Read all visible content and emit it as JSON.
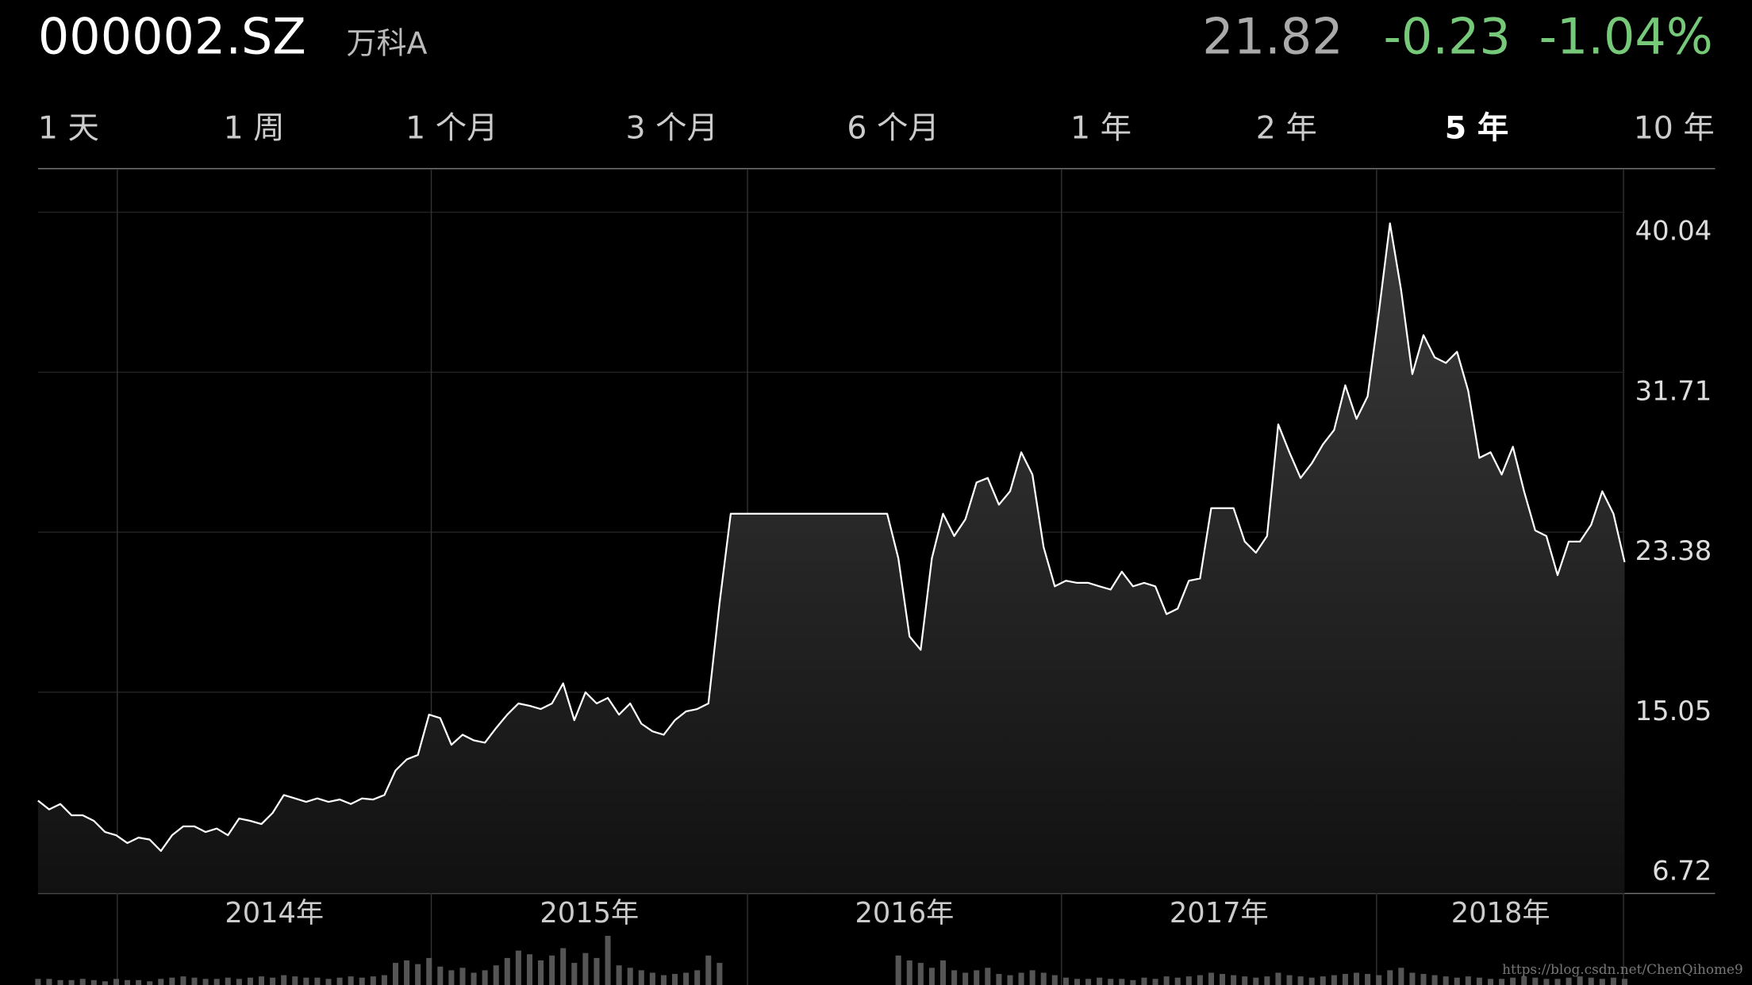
{
  "header": {
    "ticker": "000002.SZ",
    "name": "万科A",
    "price": "21.82",
    "change": "-0.23",
    "change_percent": "-1.04%"
  },
  "ranges": {
    "items": [
      "1 天",
      "1 周",
      "1 个月",
      "3 个月",
      "6 个月",
      "1 年",
      "2 年",
      "5 年",
      "10 年"
    ],
    "selected": 7
  },
  "chart_data": {
    "type": "line",
    "color": "#ffffff",
    "values": [
      9.4,
      8.94,
      9.23,
      8.64,
      8.64,
      8.35,
      7.77,
      7.6,
      7.19,
      7.48,
      7.37,
      6.78,
      7.6,
      8.06,
      8.06,
      7.77,
      7.95,
      7.6,
      8.47,
      8.35,
      8.18,
      8.76,
      9.69,
      9.52,
      9.34,
      9.52,
      9.34,
      9.46,
      9.23,
      9.52,
      9.46,
      9.69,
      10.97,
      11.55,
      11.78,
      13.88,
      13.7,
      12.31,
      12.83,
      12.54,
      12.42,
      13.18,
      13.88,
      14.46,
      14.34,
      14.17,
      14.46,
      15.51,
      13.59,
      15.04,
      14.46,
      14.75,
      13.88,
      14.46,
      13.41,
      13.01,
      12.83,
      13.59,
      14.05,
      14.17,
      14.46,
      19.69,
      24.34,
      24.34,
      24.34,
      24.34,
      24.34,
      24.34,
      24.34,
      24.34,
      24.34,
      24.34,
      24.34,
      24.34,
      24.34,
      24.34,
      24.34,
      22.02,
      17.95,
      17.25,
      22.02,
      24.34,
      23.18,
      24.05,
      25.97,
      26.2,
      24.81,
      25.51,
      27.54,
      26.38,
      22.6,
      20.56,
      20.85,
      20.74,
      20.74,
      20.56,
      20.39,
      21.32,
      20.56,
      20.74,
      20.56,
      19.11,
      19.4,
      20.85,
      20.97,
      24.63,
      24.63,
      24.63,
      22.89,
      22.31,
      23.18,
      28.99,
      27.54,
      26.2,
      26.96,
      27.95,
      28.7,
      31.03,
      29.28,
      30.45,
      34.81,
      39.46,
      35.97,
      31.61,
      33.64,
      32.48,
      32.19,
      32.77,
      30.74,
      27.25,
      27.54,
      26.38,
      27.83,
      25.51,
      23.47,
      23.18,
      21.14,
      22.89,
      22.89,
      23.76,
      25.51,
      24.34,
      21.82
    ],
    "volume": [
      5,
      5,
      4,
      4,
      5,
      4,
      3,
      5,
      4,
      4,
      3,
      5,
      6,
      7,
      6,
      5,
      5,
      6,
      5,
      6,
      7,
      6,
      8,
      7,
      6,
      6,
      5,
      6,
      7,
      6,
      7,
      8,
      18,
      20,
      17,
      22,
      15,
      12,
      14,
      10,
      12,
      16,
      22,
      28,
      25,
      20,
      24,
      30,
      18,
      26,
      22,
      40,
      16,
      14,
      12,
      10,
      8,
      9,
      10,
      12,
      24,
      18,
      0,
      0,
      0,
      0,
      0,
      0,
      0,
      0,
      0,
      0,
      0,
      0,
      0,
      0,
      0,
      24,
      20,
      18,
      14,
      20,
      12,
      10,
      12,
      14,
      9,
      8,
      10,
      12,
      10,
      8,
      6,
      5,
      5,
      6,
      5,
      5,
      4,
      6,
      5,
      7,
      6,
      7,
      8,
      10,
      9,
      8,
      7,
      6,
      7,
      10,
      8,
      7,
      6,
      7,
      8,
      9,
      10,
      9,
      8,
      12,
      14,
      10,
      9,
      8,
      7,
      6,
      7,
      6,
      5,
      5,
      6,
      7,
      6,
      5,
      5,
      6,
      7,
      6,
      5,
      6,
      5
    ],
    "xlim": [
      0,
      142
    ],
    "xticks": [
      {
        "value": 7.1,
        "label": "2014年"
      },
      {
        "value": 35.2,
        "label": "2015年"
      },
      {
        "value": 63.5,
        "label": "2016年"
      },
      {
        "value": 91.6,
        "label": "2017年"
      },
      {
        "value": 119.8,
        "label": "2018年"
      }
    ],
    "ylim": [
      4.57,
      42.25
    ],
    "yticks": [
      6.72,
      15.05,
      23.38,
      31.71,
      40.04
    ],
    "grid": true
  },
  "watermark": "https://blog.csdn.net/ChenQihome9"
}
